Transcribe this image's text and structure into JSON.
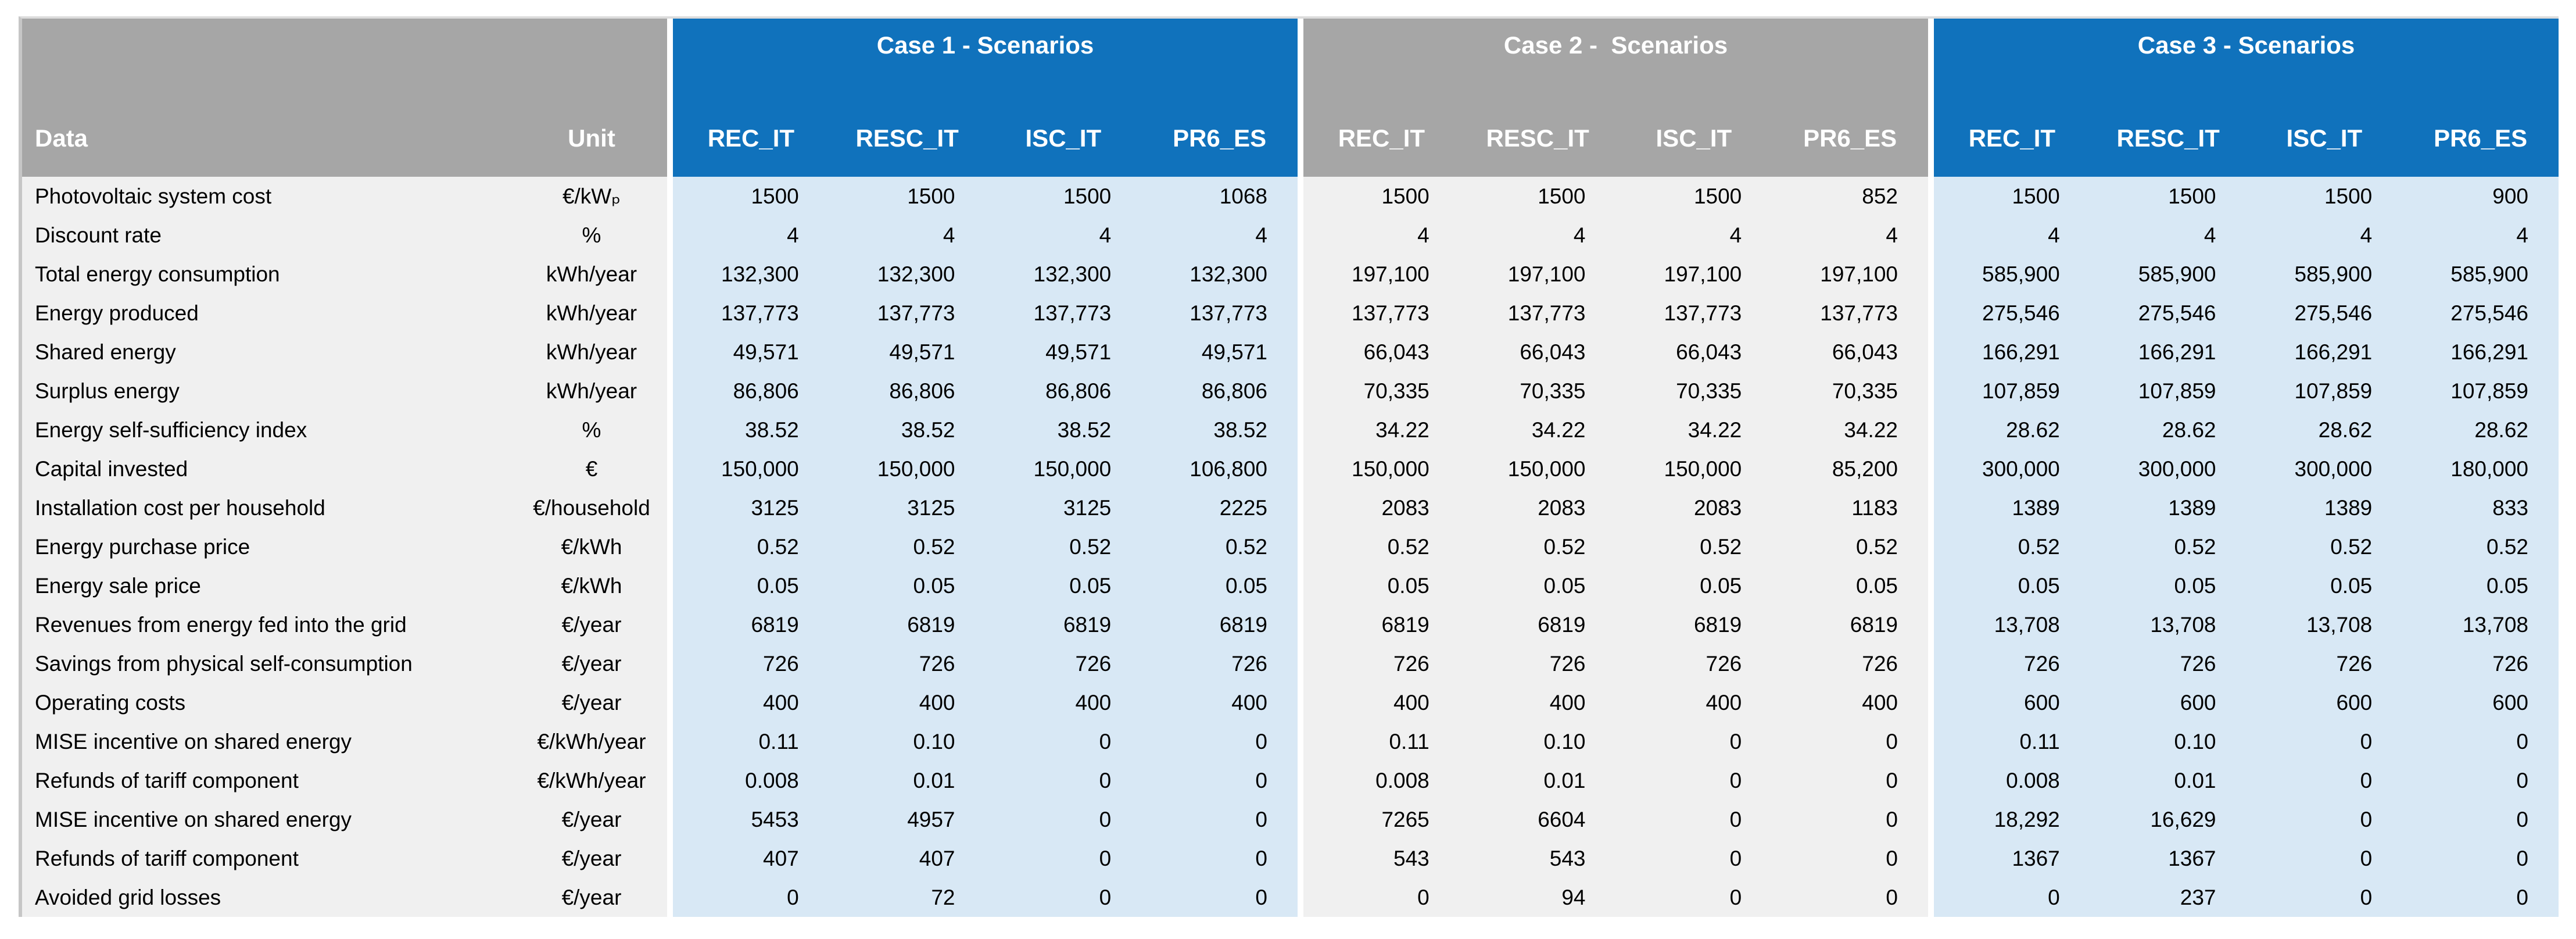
{
  "colors": {
    "header_blue": "#1072bc",
    "header_gray": "#a6a6a6",
    "body_blue": "#d8e8f5",
    "body_gray": "#f0f0f0"
  },
  "table": {
    "corner": {
      "data_label": "Data",
      "unit_label": "Unit"
    },
    "groups": [
      {
        "title": "Case 1 - Scenarios",
        "style": "blue",
        "columns": [
          "REC_IT",
          "RESC_IT",
          "ISC_IT",
          "PR6_ES"
        ]
      },
      {
        "title": "Case 2 -  Scenarios",
        "style": "gray",
        "columns": [
          "REC_IT",
          "RESC_IT",
          "ISC_IT",
          "PR6_ES"
        ]
      },
      {
        "title": "Case 3 - Scenarios",
        "style": "blue",
        "columns": [
          "REC_IT",
          "RESC_IT",
          "ISC_IT",
          "PR6_ES"
        ]
      }
    ],
    "rows": [
      {
        "label": "Photovoltaic system cost",
        "unit": "€/kWₚ",
        "values": [
          [
            "1500",
            "1500",
            "1500",
            "1068"
          ],
          [
            "1500",
            "1500",
            "1500",
            "852"
          ],
          [
            "1500",
            "1500",
            "1500",
            "900"
          ]
        ]
      },
      {
        "label": "Discount rate",
        "unit": "%",
        "values": [
          [
            "4",
            "4",
            "4",
            "4"
          ],
          [
            "4",
            "4",
            "4",
            "4"
          ],
          [
            "4",
            "4",
            "4",
            "4"
          ]
        ]
      },
      {
        "label": "Total energy consumption",
        "unit": "kWh/year",
        "values": [
          [
            "132,300",
            "132,300",
            "132,300",
            "132,300"
          ],
          [
            "197,100",
            "197,100",
            "197,100",
            "197,100"
          ],
          [
            "585,900",
            "585,900",
            "585,900",
            "585,900"
          ]
        ]
      },
      {
        "label": "Energy produced",
        "unit": "kWh/year",
        "values": [
          [
            "137,773",
            "137,773",
            "137,773",
            "137,773"
          ],
          [
            "137,773",
            "137,773",
            "137,773",
            "137,773"
          ],
          [
            "275,546",
            "275,546",
            "275,546",
            "275,546"
          ]
        ]
      },
      {
        "label": "Shared energy",
        "unit": "kWh/year",
        "values": [
          [
            "49,571",
            "49,571",
            "49,571",
            "49,571"
          ],
          [
            "66,043",
            "66,043",
            "66,043",
            "66,043"
          ],
          [
            "166,291",
            "166,291",
            "166,291",
            "166,291"
          ]
        ]
      },
      {
        "label": "Surplus energy",
        "unit": "kWh/year",
        "values": [
          [
            "86,806",
            "86,806",
            "86,806",
            "86,806"
          ],
          [
            "70,335",
            "70,335",
            "70,335",
            "70,335"
          ],
          [
            "107,859",
            "107,859",
            "107,859",
            "107,859"
          ]
        ]
      },
      {
        "label": "Energy self-sufficiency index",
        "unit": "%",
        "values": [
          [
            "38.52",
            "38.52",
            "38.52",
            "38.52"
          ],
          [
            "34.22",
            "34.22",
            "34.22",
            "34.22"
          ],
          [
            "28.62",
            "28.62",
            "28.62",
            "28.62"
          ]
        ]
      },
      {
        "label": "Capital invested",
        "unit": "€",
        "values": [
          [
            "150,000",
            "150,000",
            "150,000",
            "106,800"
          ],
          [
            "150,000",
            "150,000",
            "150,000",
            "85,200"
          ],
          [
            "300,000",
            "300,000",
            "300,000",
            "180,000"
          ]
        ]
      },
      {
        "label": "Installation cost per household",
        "unit": "€/household",
        "values": [
          [
            "3125",
            "3125",
            "3125",
            "2225"
          ],
          [
            "2083",
            "2083",
            "2083",
            "1183"
          ],
          [
            "1389",
            "1389",
            "1389",
            "833"
          ]
        ]
      },
      {
        "label": "Energy purchase price",
        "unit": "€/kWh",
        "values": [
          [
            "0.52",
            "0.52",
            "0.52",
            "0.52"
          ],
          [
            "0.52",
            "0.52",
            "0.52",
            "0.52"
          ],
          [
            "0.52",
            "0.52",
            "0.52",
            "0.52"
          ]
        ]
      },
      {
        "label": "Energy sale price",
        "unit": "€/kWh",
        "values": [
          [
            "0.05",
            "0.05",
            "0.05",
            "0.05"
          ],
          [
            "0.05",
            "0.05",
            "0.05",
            "0.05"
          ],
          [
            "0.05",
            "0.05",
            "0.05",
            "0.05"
          ]
        ]
      },
      {
        "label": "Revenues from energy fed into the grid",
        "unit": "€/year",
        "values": [
          [
            "6819",
            "6819",
            "6819",
            "6819"
          ],
          [
            "6819",
            "6819",
            "6819",
            "6819"
          ],
          [
            "13,708",
            "13,708",
            "13,708",
            "13,708"
          ]
        ]
      },
      {
        "label": "Savings from physical self-consumption",
        "unit": "€/year",
        "values": [
          [
            "726",
            "726",
            "726",
            "726"
          ],
          [
            "726",
            "726",
            "726",
            "726"
          ],
          [
            "726",
            "726",
            "726",
            "726"
          ]
        ]
      },
      {
        "label": "Operating costs",
        "unit": "€/year",
        "values": [
          [
            "400",
            "400",
            "400",
            "400"
          ],
          [
            "400",
            "400",
            "400",
            "400"
          ],
          [
            "600",
            "600",
            "600",
            "600"
          ]
        ]
      },
      {
        "label": "MISE incentive on shared energy",
        "unit": "€/kWh/year",
        "values": [
          [
            "0.11",
            "0.10",
            "0",
            "0"
          ],
          [
            "0.11",
            "0.10",
            "0",
            "0"
          ],
          [
            "0.11",
            "0.10",
            "0",
            "0"
          ]
        ]
      },
      {
        "label": "Refunds of tariff component",
        "unit": "€/kWh/year",
        "values": [
          [
            "0.008",
            "0.01",
            "0",
            "0"
          ],
          [
            "0.008",
            "0.01",
            "0",
            "0"
          ],
          [
            "0.008",
            "0.01",
            "0",
            "0"
          ]
        ]
      },
      {
        "label": "MISE incentive on shared energy",
        "unit": "€/year",
        "values": [
          [
            "5453",
            "4957",
            "0",
            "0"
          ],
          [
            "7265",
            "6604",
            "0",
            "0"
          ],
          [
            "18,292",
            "16,629",
            "0",
            "0"
          ]
        ]
      },
      {
        "label": "Refunds of tariff component",
        "unit": "€/year",
        "values": [
          [
            "407",
            "407",
            "0",
            "0"
          ],
          [
            "543",
            "543",
            "0",
            "0"
          ],
          [
            "1367",
            "1367",
            "0",
            "0"
          ]
        ]
      },
      {
        "label": "Avoided grid losses",
        "unit": "€/year",
        "values": [
          [
            "0",
            "72",
            "0",
            "0"
          ],
          [
            "0",
            "94",
            "0",
            "0"
          ],
          [
            "0",
            "237",
            "0",
            "0"
          ]
        ]
      }
    ]
  }
}
